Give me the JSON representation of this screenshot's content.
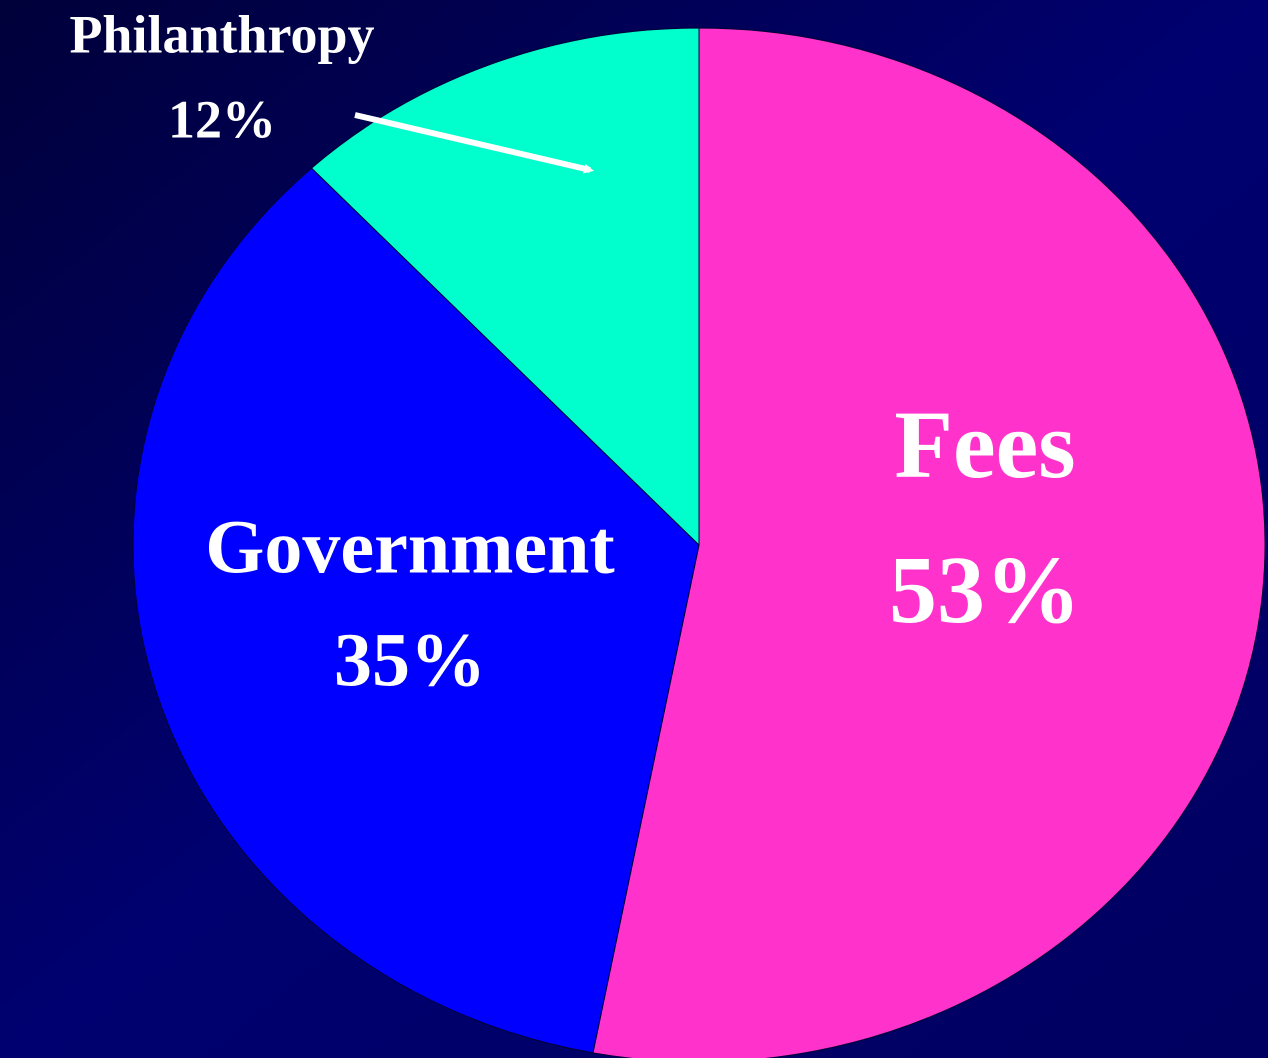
{
  "chart_data": {
    "type": "pie",
    "categories": [
      "Fees",
      "Government",
      "Philanthropy"
    ],
    "values": [
      53,
      35,
      12
    ],
    "value_labels": [
      "53%",
      "35%",
      "12%"
    ],
    "colors": [
      "#ff33cc",
      "#0000ff",
      "#00ffcc"
    ]
  }
}
